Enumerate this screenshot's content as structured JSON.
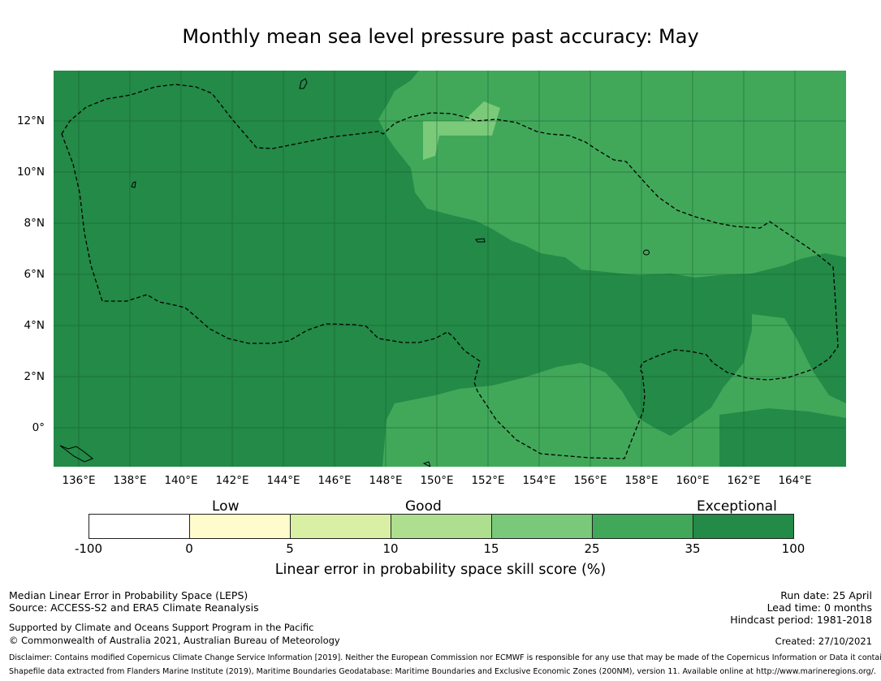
{
  "title": "Monthly mean sea level pressure past accuracy: May",
  "map": {
    "lat_labels": [
      "12°N",
      "10°N",
      "8°N",
      "6°N",
      "4°N",
      "2°N",
      "0°"
    ],
    "lon_labels": [
      "136°E",
      "138°E",
      "140°E",
      "142°E",
      "144°E",
      "146°E",
      "148°E",
      "150°E",
      "152°E",
      "154°E",
      "156°E",
      "158°E",
      "160°E",
      "162°E",
      "164°E"
    ],
    "colors": {
      "exceptional_dark": "#238a47",
      "very_good": "#41a85a",
      "good": "#7aca7a",
      "boundary": "#000000"
    }
  },
  "legend": {
    "categories": [
      "Low",
      "Good",
      "Exceptional"
    ],
    "ticks": [
      "-100",
      "0",
      "5",
      "10",
      "15",
      "25",
      "35",
      "100"
    ],
    "colors": [
      "#ffffff",
      "#fffbcc",
      "#d9efa3",
      "#aedf8f",
      "#7ac87a",
      "#41a85a",
      "#238a47"
    ],
    "label": "Linear error in probability space skill score (%)"
  },
  "footer": {
    "line1": "Median Linear Error in Probability Space (LEPS)",
    "line2": "Source: ACCESS-S2 and ERA5 Climate Reanalysis",
    "line3": "Supported by Climate and Oceans Support Program in the Pacific",
    "line4": "© Commonwealth of Australia 2021, Australian Bureau of Meteorology",
    "run_date": "Run date: 25 April",
    "lead_time": "Lead time: 0 months",
    "hindcast": "Hindcast period: 1981-2018",
    "created": "Created: 27/10/2021",
    "disclaimer": "Disclaimer: Contains modified Copernicus Climate Change Service Information [2019]. Neither the European Commission nor ECMWF is responsible for any use that may be made of the Copernicus Information or Data it contains.",
    "shapefile": "Shapefile data extracted from Flanders Marine Institute (2019), Maritime Boundaries Geodatabase: Maritime Boundaries and Exclusive Economic Zones (200NM), version 11. Available online at http://www.marineregions.org/."
  }
}
